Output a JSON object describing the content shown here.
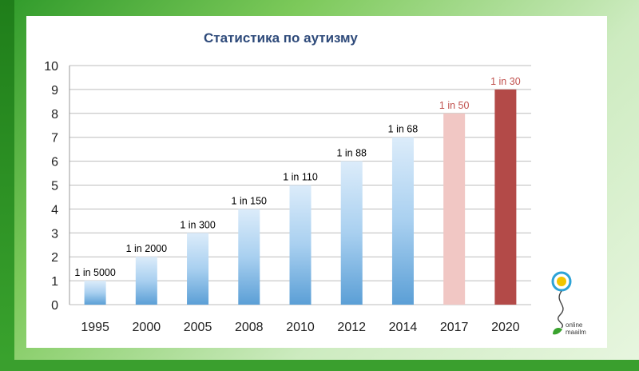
{
  "chart_data": {
    "type": "bar",
    "title": "Статистика по аутизму",
    "categories": [
      "1995",
      "2000",
      "2005",
      "2008",
      "2010",
      "2012",
      "2014",
      "2017",
      "2020"
    ],
    "values": [
      1,
      2,
      3,
      4,
      5,
      6,
      7,
      8,
      9
    ],
    "data_labels": [
      "1 in 5000",
      "1 in 2000",
      "1 in 300",
      "1 in 150",
      "1 in 110",
      "1 in 88",
      "1 in 68",
      "1 in 50",
      "1 in 30"
    ],
    "ylim": [
      0,
      10
    ],
    "yticks": [
      0,
      1,
      2,
      3,
      4,
      5,
      6,
      7,
      8,
      9,
      10
    ],
    "grid": true,
    "colors": {
      "default": "#8fc1ea",
      "highlight_2017": "#f1c7c4",
      "highlight_2020": "#b34a48",
      "label_default": "#000000",
      "label_highlight": "#c0504d"
    },
    "bar_colors": [
      "default",
      "default",
      "default",
      "default",
      "default",
      "default",
      "default",
      "highlight_2017",
      "highlight_2020"
    ]
  },
  "logo": {
    "line1": "online",
    "line2": "maailm",
    "icon": "lightbulb-leaf-icon"
  }
}
